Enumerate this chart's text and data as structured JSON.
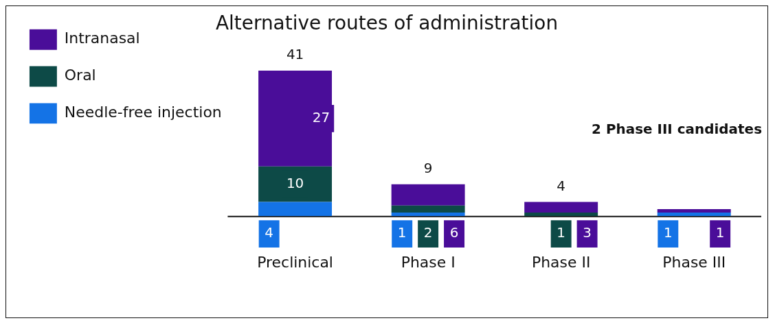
{
  "chart_data": {
    "type": "bar",
    "title": "Alternative routes of administration",
    "categories": [
      "Preclinical",
      "Phase I",
      "Phase II",
      "Phase III"
    ],
    "stacked": true,
    "legend": "top left",
    "grid": false,
    "tick_labels": "x",
    "series": [
      {
        "name": "Needle-free injection",
        "color": "#1473e6",
        "values": [
          4,
          1,
          0,
          1
        ],
        "value_labels": [
          "4",
          "1",
          null,
          "1"
        ]
      },
      {
        "name": "Oral",
        "color": "#0d4a47",
        "values": [
          10,
          2,
          1,
          0
        ],
        "value_labels": [
          "10",
          "2",
          "1",
          null
        ]
      },
      {
        "name": "Intranasal",
        "color": "#4a0d99",
        "values": [
          27,
          6,
          3,
          1
        ],
        "value_labels": [
          "27",
          "6",
          "3",
          "1"
        ]
      }
    ],
    "totals": [
      "41",
      "9",
      "4",
      null
    ],
    "annotations": [
      "2 Phase III candidates"
    ]
  }
}
